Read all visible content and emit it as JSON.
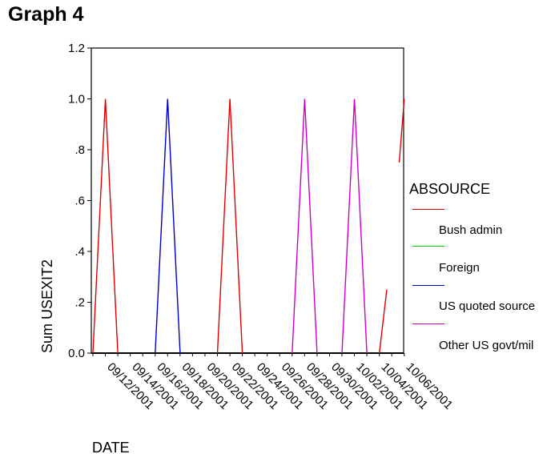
{
  "page": {
    "title": "Graph 4"
  },
  "legend": {
    "title": "ABSOURCE",
    "items": [
      {
        "label": "Bush admin",
        "color": "#e00000"
      },
      {
        "label": "Foreign",
        "color": "#00cc00"
      },
      {
        "label": "US quoted source",
        "color": "#0000cc"
      },
      {
        "label": "Other US govt/mil",
        "color": "#cc00cc"
      }
    ]
  },
  "chart_data": {
    "type": "line",
    "title": "Graph 4",
    "xlabel": "DATE",
    "ylabel": "Sum USEXIT2",
    "ylim": [
      0,
      1.2
    ],
    "y_ticks": [
      {
        "value": 0,
        "label": "0.0"
      },
      {
        "value": 0.2,
        "label": ".2"
      },
      {
        "value": 0.4,
        "label": ".4"
      },
      {
        "value": 0.6,
        "label": ".6"
      },
      {
        "value": 0.8,
        "label": ".8"
      },
      {
        "value": 1.0,
        "label": "1.0"
      },
      {
        "value": 1.2,
        "label": "1.2"
      }
    ],
    "x_index_range": [
      0,
      25
    ],
    "x_ticks": [
      {
        "index": 2,
        "label": "09/12/2001"
      },
      {
        "index": 4,
        "label": "09/14/2001"
      },
      {
        "index": 6,
        "label": "09/16/2001"
      },
      {
        "index": 8,
        "label": "09/18/2001"
      },
      {
        "index": 10,
        "label": "09/20/2001"
      },
      {
        "index": 12,
        "label": "09/22/2001"
      },
      {
        "index": 14,
        "label": "09/24/2001"
      },
      {
        "index": 16,
        "label": "09/26/2001"
      },
      {
        "index": 18,
        "label": "09/28/2001"
      },
      {
        "index": 20,
        "label": "09/30/2001"
      },
      {
        "index": 22,
        "label": "10/02/2001"
      },
      {
        "index": 24,
        "label": "10/04/2001"
      },
      {
        "index": 26,
        "label": "10/06/2001"
      }
    ],
    "series": [
      {
        "name": "Bush admin",
        "color": "#e00000",
        "segments": [
          [
            [
              0,
              0
            ],
            [
              1,
              1
            ],
            [
              2,
              0
            ]
          ],
          [
            [
              10,
              0
            ],
            [
              11,
              1
            ],
            [
              12,
              0
            ]
          ],
          [
            [
              23,
              0
            ],
            [
              23.6,
              0.25
            ]
          ],
          [
            [
              24.6,
              0.75
            ],
            [
              25,
              1
            ]
          ]
        ]
      },
      {
        "name": "US quoted source",
        "color": "#0000cc",
        "segments": [
          [
            [
              5,
              0
            ],
            [
              6,
              1
            ],
            [
              7,
              0
            ]
          ]
        ]
      },
      {
        "name": "Other US govt/mil",
        "color": "#cc00cc",
        "segments": [
          [
            [
              16,
              0
            ],
            [
              17,
              1
            ],
            [
              18,
              0
            ]
          ],
          [
            [
              20,
              0
            ],
            [
              21,
              1
            ],
            [
              22,
              0
            ]
          ]
        ]
      }
    ]
  }
}
